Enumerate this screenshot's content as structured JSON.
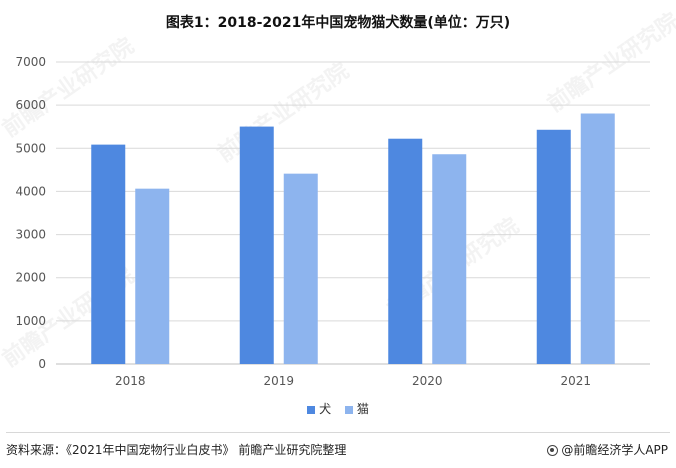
{
  "title": "图表1：2018-2021年中国宠物猫犬数量(单位：万只)",
  "chart_data": {
    "type": "bar",
    "categories": [
      "2018",
      "2019",
      "2020",
      "2021"
    ],
    "series": [
      {
        "name": "犬",
        "values": [
          5085,
          5503,
          5222,
          5429
        ],
        "color": "#4E88E0"
      },
      {
        "name": "猫",
        "values": [
          4064,
          4412,
          4862,
          5806
        ],
        "color": "#8DB4EE"
      }
    ],
    "ylim": [
      0,
      7000
    ],
    "yticks": [
      0,
      1000,
      2000,
      3000,
      4000,
      5000,
      6000,
      7000
    ],
    "grid": true,
    "legend": "bottom-center"
  },
  "legend": {
    "dog": "犬",
    "cat": "猫"
  },
  "footer": {
    "source": "资料来源：《2021年中国宠物行业白皮书》 前瞻产业研究院整理",
    "brand": "@前瞻经济学人APP"
  },
  "watermark": "前瞻产业研究院"
}
